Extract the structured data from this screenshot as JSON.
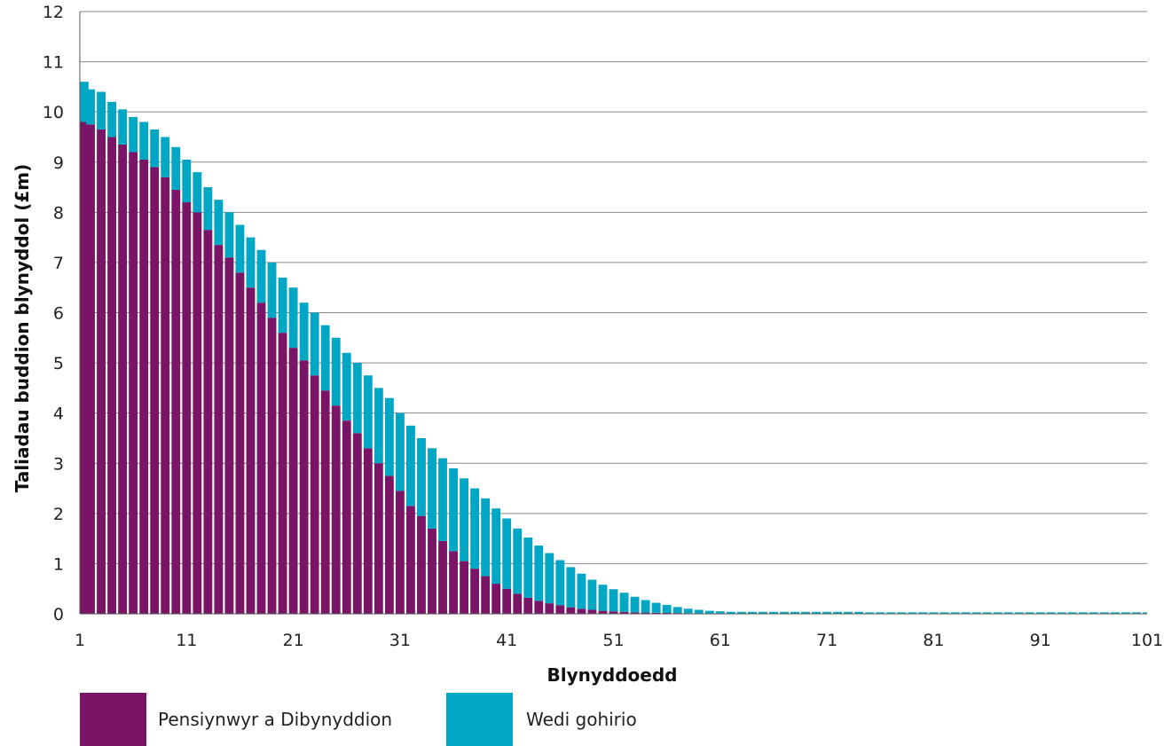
{
  "chart_data": {
    "type": "bar",
    "stacked": true,
    "xlabel": "Blynyddoedd",
    "ylabel": "Taliadau buddion blynyddol (£m)",
    "ylim": [
      0,
      12
    ],
    "yticks": [
      0,
      1,
      2,
      3,
      4,
      5,
      6,
      7,
      8,
      9,
      10,
      11,
      12
    ],
    "xticks": [
      1,
      11,
      21,
      31,
      41,
      51,
      61,
      71,
      81,
      91,
      101
    ],
    "grid": true,
    "legend_position": "bottom-left",
    "colors": {
      "Pensiynwyr a Dibynyddion": "#7a1566",
      "Wedi gohirio": "#00a7c4"
    },
    "series": [
      {
        "name": "Pensiynwyr a Dibynyddion",
        "color": "#7a1566",
        "values": [
          9.8,
          9.75,
          9.65,
          9.5,
          9.35,
          9.2,
          9.05,
          8.9,
          8.7,
          8.45,
          8.2,
          8.0,
          7.65,
          7.35,
          7.1,
          6.8,
          6.5,
          6.2,
          5.9,
          5.6,
          5.3,
          5.05,
          4.75,
          4.45,
          4.15,
          3.85,
          3.6,
          3.3,
          3.0,
          2.75,
          2.45,
          2.15,
          1.95,
          1.7,
          1.45,
          1.25,
          1.05,
          0.9,
          0.75,
          0.6,
          0.5,
          0.4,
          0.32,
          0.26,
          0.21,
          0.17,
          0.13,
          0.1,
          0.08,
          0.06,
          0.05,
          0.04,
          0.03,
          0.025,
          0.02,
          0.018,
          0.015,
          0.012,
          0.01,
          0.01,
          0.01,
          0.01,
          0.01,
          0.01,
          0.01,
          0.01,
          0.01,
          0.01,
          0.01,
          0.01,
          0.01,
          0.01,
          0.01,
          0.01,
          0.01,
          0.01,
          0.01,
          0.01,
          0.01,
          0.01,
          0.01,
          0.01,
          0.01,
          0.01,
          0.01,
          0.01,
          0.01,
          0.01,
          0.01,
          0.01,
          0.01,
          0.01,
          0.01,
          0.01,
          0.01,
          0.01,
          0.01,
          0.01,
          0.01,
          0.01,
          0.01
        ]
      },
      {
        "name": "Wedi gohirio",
        "color": "#00a7c4",
        "values": [
          0.8,
          0.7,
          0.75,
          0.7,
          0.7,
          0.7,
          0.75,
          0.75,
          0.8,
          0.85,
          0.85,
          0.8,
          0.85,
          0.9,
          0.9,
          0.95,
          1.0,
          1.05,
          1.1,
          1.1,
          1.2,
          1.15,
          1.25,
          1.3,
          1.35,
          1.35,
          1.4,
          1.45,
          1.5,
          1.55,
          1.55,
          1.6,
          1.55,
          1.6,
          1.65,
          1.65,
          1.65,
          1.6,
          1.55,
          1.5,
          1.4,
          1.3,
          1.2,
          1.1,
          1.0,
          0.9,
          0.8,
          0.7,
          0.6,
          0.52,
          0.44,
          0.38,
          0.31,
          0.25,
          0.2,
          0.16,
          0.12,
          0.09,
          0.07,
          0.05,
          0.04,
          0.03,
          0.03,
          0.03,
          0.03,
          0.03,
          0.03,
          0.03,
          0.03,
          0.03,
          0.03,
          0.03,
          0.03,
          0.03,
          0.02,
          0.02,
          0.02,
          0.02,
          0.02,
          0.02,
          0.02,
          0.02,
          0.02,
          0.02,
          0.02,
          0.02,
          0.02,
          0.02,
          0.02,
          0.02,
          0.02,
          0.02,
          0.02,
          0.02,
          0.02,
          0.02,
          0.02,
          0.02,
          0.02,
          0.02,
          0.02
        ]
      }
    ]
  }
}
